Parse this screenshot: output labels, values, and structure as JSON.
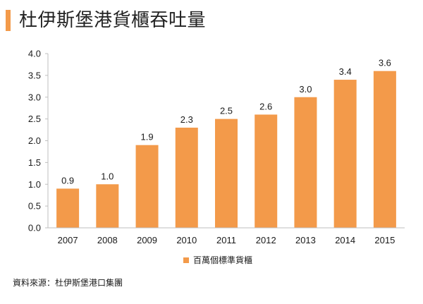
{
  "title": "杜伊斯堡港貨櫃吞吐量",
  "source": "資料來源：杜伊斯堡港口集團",
  "colors": {
    "accent": "#f39a4a",
    "bar": "#f39a4a"
  },
  "chart_data": {
    "type": "bar",
    "title": "",
    "xlabel": "",
    "ylabel": "",
    "categories": [
      "2007",
      "2008",
      "2009",
      "2010",
      "2011",
      "2012",
      "2013",
      "2014",
      "2015"
    ],
    "series": [
      {
        "name": "百萬個標準貨櫃",
        "values": [
          0.9,
          1.0,
          1.9,
          2.3,
          2.5,
          2.6,
          3.0,
          3.4,
          3.6
        ]
      }
    ],
    "data_labels": [
      "0.9",
      "1.0",
      "1.9",
      "2.3",
      "2.5",
      "2.6",
      "3.0",
      "3.4",
      "3.6"
    ],
    "ylim": [
      0,
      4
    ],
    "yticks": [
      "0.0",
      "0.5",
      "1.0",
      "1.5",
      "2.0",
      "2.5",
      "3.0",
      "3.5",
      "4.0"
    ],
    "grid": false,
    "legend_position": "bottom"
  }
}
